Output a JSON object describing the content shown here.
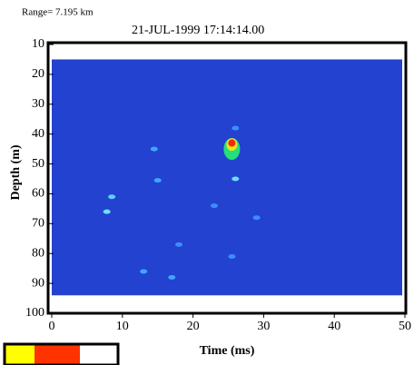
{
  "chart_data": {
    "type": "echogram",
    "range_label": "Range= 7.195 km",
    "title": "21-JUL-1999   17:14:14.00",
    "x_label": "Time (ms)",
    "y_label": "Depth (m)",
    "xlim": [
      0,
      50
    ],
    "ylim": [
      10,
      100
    ],
    "xticks": [
      0,
      10,
      20,
      30,
      40,
      50
    ],
    "yticks": [
      10,
      20,
      30,
      40,
      50,
      60,
      70,
      80,
      90,
      100
    ],
    "background": "#2342cf",
    "data_extent_y": [
      15,
      94
    ],
    "echoes": {
      "x": [
        25.5,
        25.5,
        25.5,
        14.5,
        8.5,
        7.8,
        15,
        26,
        23,
        29,
        18,
        13,
        17,
        25.5,
        26
      ],
      "y": [
        45,
        43.5,
        43,
        45,
        61,
        66,
        55.5,
        55,
        64,
        68,
        77,
        86,
        88,
        81,
        38
      ],
      "colors": [
        "#22e07a",
        "#f0e020",
        "#ee2a10",
        "#3fa7ff",
        "#5fd0ff",
        "#6fdcff",
        "#3fa7ff",
        "#6fdcff",
        "#3f8cff",
        "#3f8cff",
        "#3f8cff",
        "#3fa7ff",
        "#3fa7ff",
        "#3f8cff",
        "#3f8cff"
      ]
    },
    "colorbar_colors": [
      "#ffff00",
      "#ff3300",
      "#ffffff"
    ]
  }
}
